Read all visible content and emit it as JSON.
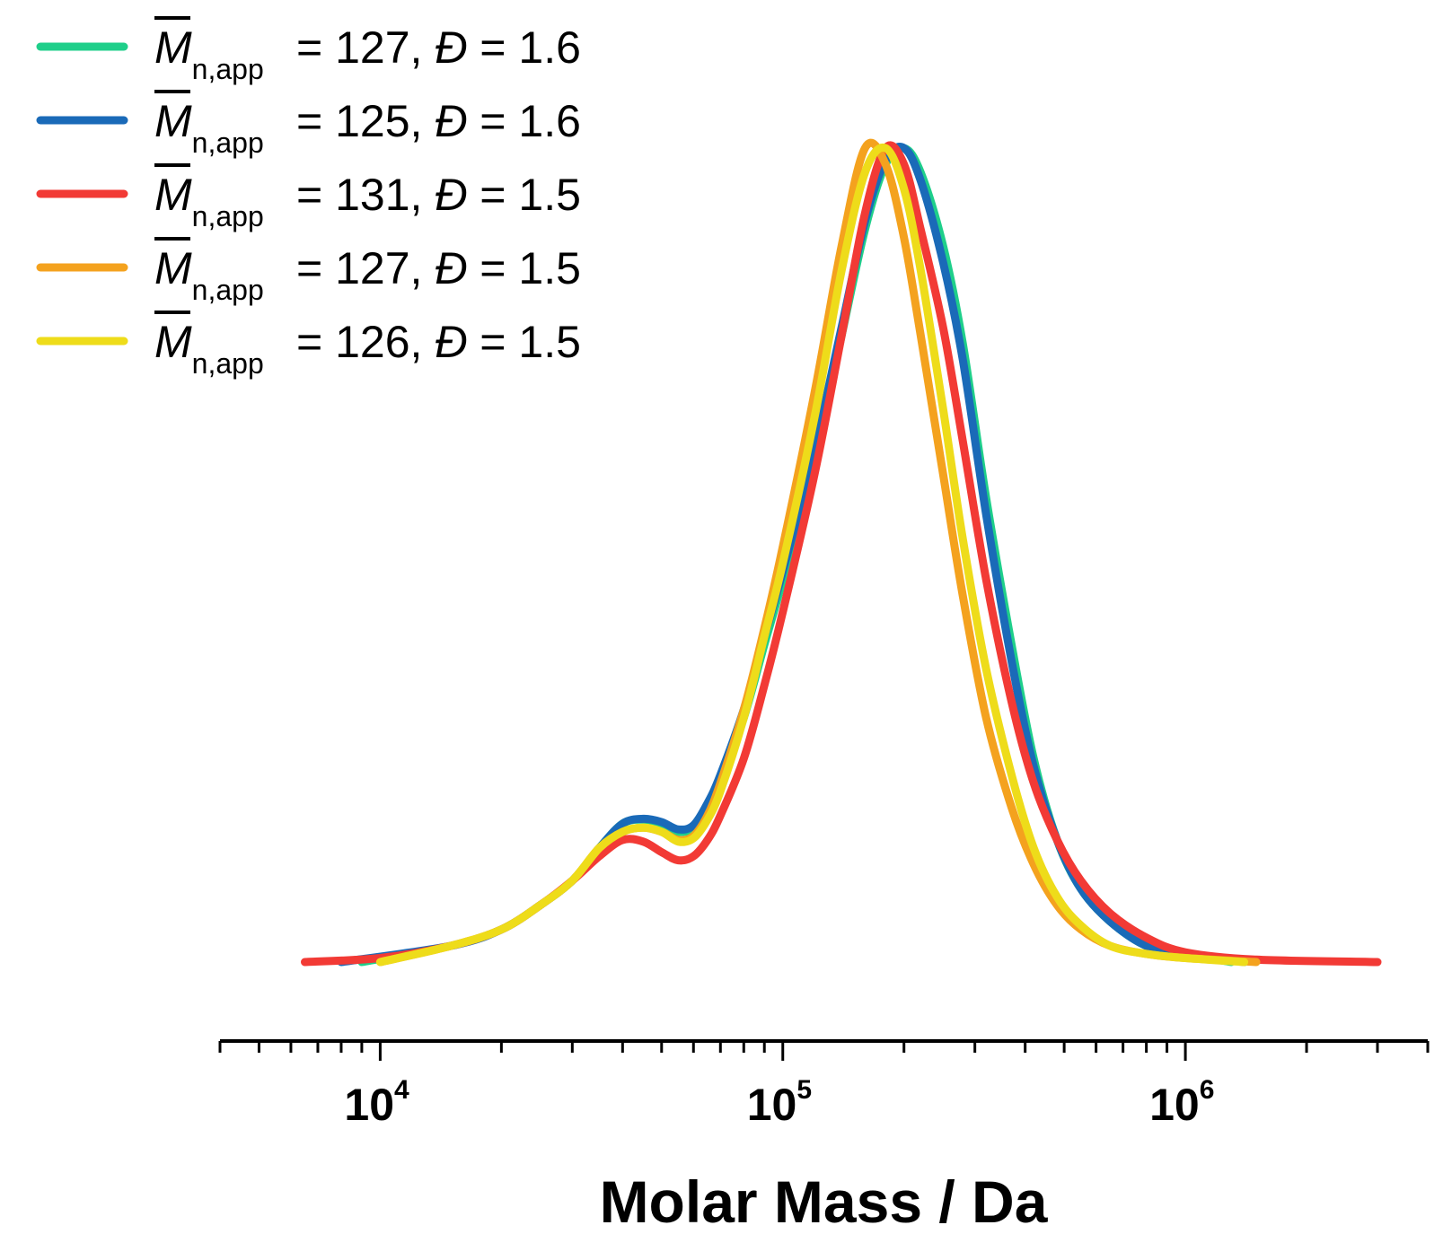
{
  "chart_data": {
    "type": "line",
    "title": "",
    "xlabel": "Molar Mass / Da",
    "ylabel": "",
    "xscale": "log",
    "xlim": [
      4000,
      4000000
    ],
    "ylim": [
      0,
      1.05
    ],
    "grid": false,
    "legend_position": "top-left",
    "x_ticks": [
      {
        "value": 10000,
        "base": "10",
        "exp": "4"
      },
      {
        "value": 100000,
        "base": "10",
        "exp": "5"
      },
      {
        "value": 1000000,
        "base": "10",
        "exp": "6"
      }
    ],
    "series": [
      {
        "name": "Mn,app = 127, Đ = 1.6",
        "legend_symbol": "M",
        "legend_sub": "n,app",
        "legend_value": "= 127,",
        "legend_dispersity": "Đ",
        "legend_dispersity_value": "= 1.6",
        "color": "#1fcf8a",
        "x": [
          9000,
          15000,
          20000,
          25000,
          30000,
          35000,
          40000,
          45000,
          50000,
          55000,
          60000,
          65000,
          70000,
          80000,
          90000,
          100000,
          120000,
          140000,
          160000,
          180000,
          200000,
          220000,
          250000,
          280000,
          320000,
          370000,
          420000,
          480000,
          550000,
          650000,
          800000,
          1000000,
          1300000
        ],
        "y": [
          0.0,
          0.02,
          0.04,
          0.07,
          0.1,
          0.14,
          0.17,
          0.175,
          0.17,
          0.16,
          0.165,
          0.19,
          0.22,
          0.3,
          0.39,
          0.47,
          0.62,
          0.77,
          0.9,
          0.98,
          1.0,
          0.97,
          0.88,
          0.76,
          0.57,
          0.39,
          0.25,
          0.15,
          0.09,
          0.05,
          0.02,
          0.01,
          0.0
        ]
      },
      {
        "name": "Mn,app = 125, Đ = 1.6",
        "legend_symbol": "M",
        "legend_sub": "n,app",
        "legend_value": "= 125,",
        "legend_dispersity": "Đ",
        "legend_dispersity_value": "= 1.6",
        "color": "#1a6ab8",
        "x": [
          8000,
          15000,
          20000,
          25000,
          30000,
          35000,
          40000,
          45000,
          50000,
          55000,
          60000,
          65000,
          70000,
          80000,
          90000,
          100000,
          120000,
          140000,
          160000,
          180000,
          200000,
          220000,
          250000,
          280000,
          320000,
          370000,
          420000,
          480000,
          550000,
          650000,
          800000,
          1000000,
          1400000
        ],
        "y": [
          0.0,
          0.02,
          0.04,
          0.07,
          0.1,
          0.14,
          0.17,
          0.176,
          0.172,
          0.163,
          0.168,
          0.195,
          0.23,
          0.31,
          0.4,
          0.48,
          0.63,
          0.78,
          0.91,
          0.985,
          1.0,
          0.96,
          0.86,
          0.74,
          0.55,
          0.37,
          0.24,
          0.15,
          0.09,
          0.05,
          0.02,
          0.01,
          0.0
        ]
      },
      {
        "name": "Mn,app = 131, Đ = 1.5",
        "legend_symbol": "M",
        "legend_sub": "n,app",
        "legend_value": "= 131,",
        "legend_dispersity": "Đ",
        "legend_dispersity_value": "= 1.5",
        "color": "#f23a35",
        "x": [
          6500,
          10000,
          15000,
          20000,
          25000,
          30000,
          35000,
          40000,
          45000,
          50000,
          55000,
          60000,
          65000,
          70000,
          80000,
          90000,
          100000,
          120000,
          140000,
          160000,
          180000,
          200000,
          220000,
          250000,
          280000,
          320000,
          370000,
          420000,
          480000,
          550000,
          650000,
          800000,
          1000000,
          1500000,
          3000000
        ],
        "y": [
          0.0,
          0.005,
          0.02,
          0.04,
          0.07,
          0.1,
          0.13,
          0.15,
          0.148,
          0.135,
          0.125,
          0.13,
          0.15,
          0.18,
          0.25,
          0.34,
          0.43,
          0.6,
          0.77,
          0.92,
          1.0,
          0.98,
          0.9,
          0.78,
          0.64,
          0.47,
          0.32,
          0.22,
          0.15,
          0.1,
          0.06,
          0.03,
          0.012,
          0.003,
          0.0
        ]
      },
      {
        "name": "Mn,app = 127, Đ = 1.5",
        "legend_symbol": "M",
        "legend_sub": "n,app",
        "legend_value": "= 127,",
        "legend_dispersity": "Đ",
        "legend_dispersity_value": "= 1.5",
        "color": "#f4a21e",
        "x": [
          10000,
          15000,
          20000,
          25000,
          30000,
          35000,
          40000,
          45000,
          50000,
          55000,
          60000,
          65000,
          70000,
          80000,
          90000,
          100000,
          120000,
          140000,
          160000,
          180000,
          200000,
          220000,
          250000,
          280000,
          320000,
          370000,
          420000,
          480000,
          550000,
          650000,
          800000,
          1000000,
          1500000
        ],
        "y": [
          0.0,
          0.02,
          0.04,
          0.07,
          0.1,
          0.14,
          0.16,
          0.165,
          0.16,
          0.15,
          0.155,
          0.18,
          0.22,
          0.31,
          0.41,
          0.51,
          0.7,
          0.88,
          1.0,
          0.98,
          0.89,
          0.77,
          0.6,
          0.45,
          0.3,
          0.19,
          0.12,
          0.07,
          0.04,
          0.02,
          0.01,
          0.005,
          0.0
        ]
      },
      {
        "name": "Mn,app = 126, Đ = 1.5",
        "legend_symbol": "M",
        "legend_sub": "n,app",
        "legend_value": "= 126,",
        "legend_dispersity": "Đ",
        "legend_dispersity_value": "= 1.5",
        "color": "#eedc1a",
        "x": [
          10000,
          15000,
          20000,
          25000,
          30000,
          35000,
          40000,
          45000,
          50000,
          55000,
          60000,
          65000,
          70000,
          80000,
          90000,
          100000,
          120000,
          140000,
          160000,
          180000,
          200000,
          220000,
          250000,
          280000,
          320000,
          370000,
          420000,
          480000,
          550000,
          650000,
          800000,
          1000000,
          1400000
        ],
        "y": [
          0.0,
          0.02,
          0.04,
          0.07,
          0.1,
          0.14,
          0.16,
          0.165,
          0.16,
          0.148,
          0.152,
          0.175,
          0.21,
          0.3,
          0.4,
          0.49,
          0.67,
          0.85,
          0.97,
          1.0,
          0.95,
          0.85,
          0.68,
          0.52,
          0.36,
          0.23,
          0.14,
          0.08,
          0.045,
          0.02,
          0.01,
          0.005,
          0.0
        ]
      }
    ]
  }
}
